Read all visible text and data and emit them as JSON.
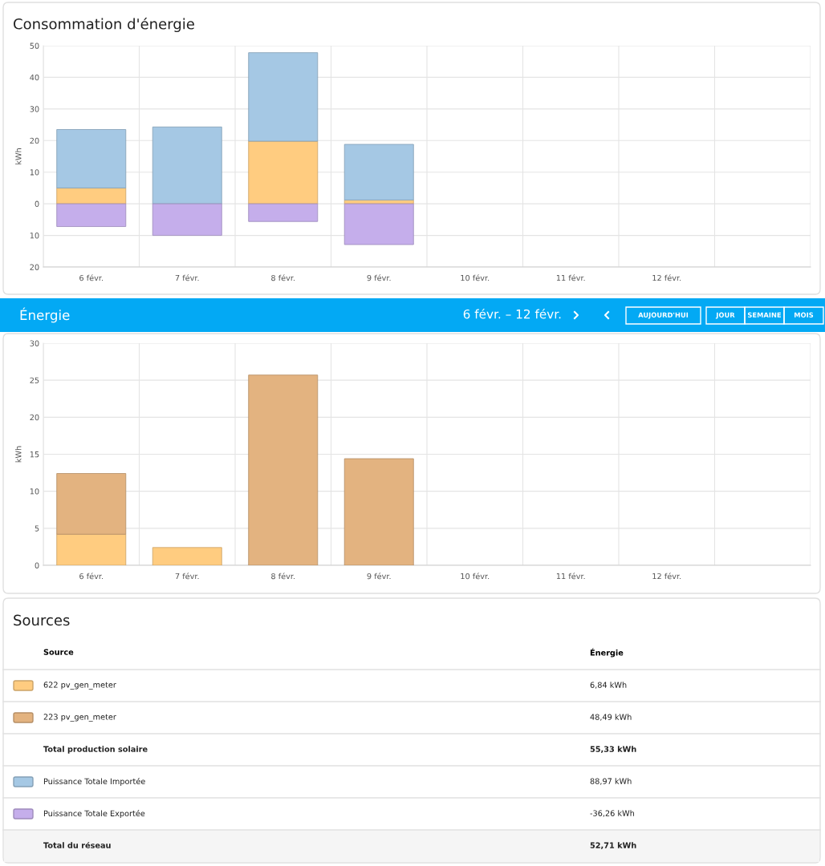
{
  "chart_data": [
    {
      "type": "bar",
      "title": "Consommation d'énergie",
      "ylabel": "kWh",
      "stacked": true,
      "grid": true,
      "categories": [
        "6 févr.",
        "7 févr.",
        "8 févr.",
        "9 févr.",
        "10 févr.",
        "11 févr.",
        "12 févr.",
        null
      ],
      "ylim": [
        -20,
        50
      ],
      "yticks": [
        {
          "value": -20,
          "label": "20"
        },
        {
          "value": -10,
          "label": "10"
        },
        0,
        10,
        20,
        30,
        40,
        50
      ],
      "series": [
        {
          "color": "#ffcc80",
          "values": [
            5,
            0,
            19.8,
            1.2,
            null,
            null,
            null,
            null
          ]
        },
        {
          "color": "#a5c8e4",
          "values": [
            18.5,
            24.3,
            28,
            17.6,
            null,
            null,
            null,
            null
          ]
        },
        {
          "color": "#c5aeeb",
          "values": [
            -7.2,
            -10,
            -5.6,
            -12.9,
            null,
            null,
            null,
            null
          ]
        }
      ]
    },
    {
      "type": "other",
      "title": "Énergie",
      "annotations": [
        "6 févr. – 12 févr.",
        "AUJOURD'HUI",
        "JOUR",
        "SEMAINE",
        "MOIS"
      ]
    },
    {
      "type": "bar",
      "ylabel": "kWh",
      "stacked": true,
      "grid": true,
      "categories": [
        "6 févr.",
        "7 févr.",
        "8 févr.",
        "9 févr.",
        "10 févr.",
        "11 févr.",
        "12 févr.",
        null
      ],
      "ylim": [
        0,
        30
      ],
      "yticks": [
        0,
        5,
        10,
        15,
        20,
        25,
        30
      ],
      "series": [
        {
          "color": "#ffcc80",
          "values": [
            4.2,
            2.4,
            0,
            0,
            null,
            null,
            null,
            null
          ]
        },
        {
          "color": "#e3b380",
          "values": [
            8.2,
            0,
            25.7,
            14.4,
            null,
            null,
            null,
            null
          ]
        }
      ]
    },
    {
      "type": "other",
      "title": "Sources",
      "categories": [
        "Source",
        "Énergie"
      ],
      "colors": [
        "#ffcc80",
        "#e3b380",
        null,
        "#a5c8e4",
        "#c5aeeb",
        null
      ],
      "annotations": [
        "622 pv_gen_meter",
        "6,84 kWh",
        "223 pv_gen_meter",
        "48,49 kWh",
        "Total production solaire",
        "55,33 kWh",
        "Puissance Totale Importée",
        "88,97 kWh",
        "Puissance Totale Exportée",
        "-36,26 kWh",
        "Total du réseau",
        "52,71 kWh"
      ]
    }
  ]
}
